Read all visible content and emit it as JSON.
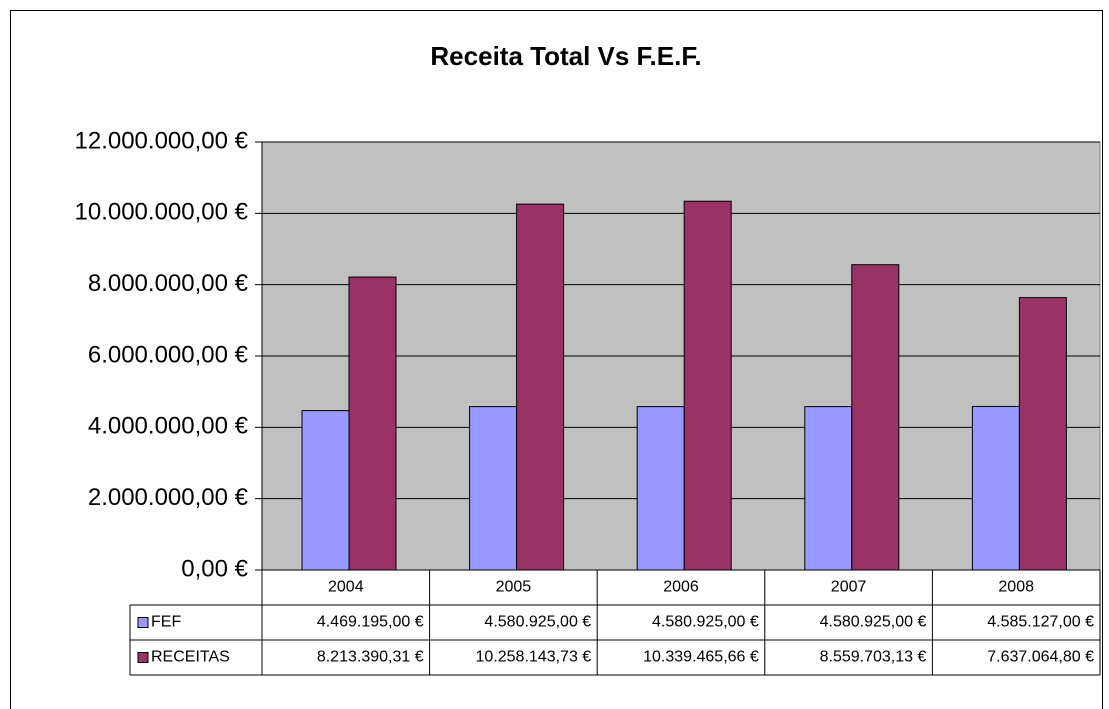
{
  "chart_data": {
    "type": "bar",
    "title": "Receita Total Vs F.E.F.",
    "categories": [
      "2004",
      "2005",
      "2006",
      "2007",
      "2008"
    ],
    "series": [
      {
        "name": "FEF",
        "color": "#9999ff",
        "values": [
          4469195.0,
          4580925.0,
          4580925.0,
          4580925.0,
          4585127.0
        ],
        "value_labels": [
          "4.469.195,00 €",
          "4.580.925,00 €",
          "4.580.925,00 €",
          "4.580.925,00 €",
          "4.585.127,00 €"
        ]
      },
      {
        "name": "RECEITAS",
        "color": "#993366",
        "values": [
          8213390.31,
          10258143.73,
          10339465.66,
          8559703.13,
          7637064.8
        ],
        "value_labels": [
          "8.213.390,31 €",
          "10.258.143,73 €",
          "10.339.465,66 €",
          "8.559.703,13 €",
          "7.637.064,80 €"
        ]
      }
    ],
    "ylim": [
      0,
      12000000
    ],
    "yticks": [
      {
        "value": 0,
        "label": "0,00 €"
      },
      {
        "value": 2000000,
        "label": "2.000.000,00 €"
      },
      {
        "value": 4000000,
        "label": "4.000.000,00 €"
      },
      {
        "value": 6000000,
        "label": "6.000.000,00 €"
      },
      {
        "value": 8000000,
        "label": "8.000.000,00 €"
      },
      {
        "value": 10000000,
        "label": "10.000.000,00 €"
      },
      {
        "value": 12000000,
        "label": "12.000.000,00 €"
      }
    ],
    "grid": true,
    "plot_background": "#c0c0c0"
  }
}
